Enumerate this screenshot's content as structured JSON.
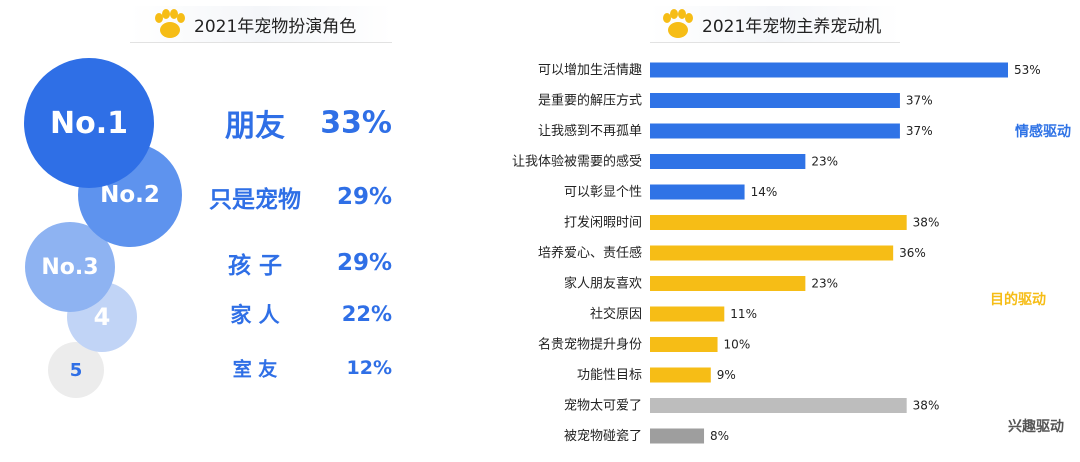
{
  "left_title": "2021年宠物扮演角色",
  "right_title": "2021年宠物主养宠动机",
  "ranks": [
    {
      "rank": "No.1",
      "label": "朋友",
      "percent": "33%"
    },
    {
      "rank": "No.2",
      "label": "只是宠物",
      "percent": "29%"
    },
    {
      "rank": "No.3",
      "label": "孩 子",
      "percent": "29%"
    },
    {
      "rank": "4",
      "label": "家 人",
      "percent": "22%"
    },
    {
      "rank": "5",
      "label": "室 友",
      "percent": "12%"
    }
  ],
  "colors": {
    "blue": "#2f73e6",
    "yellow": "#f6bd16",
    "gray": "#bdbdbd",
    "gray_dark": "#9e9e9e"
  },
  "chart_data": [
    {
      "type": "bar",
      "title": "2021年宠物扮演角色",
      "categories": [
        "朋友",
        "只是宠物",
        "孩子",
        "家人",
        "室友"
      ],
      "values": [
        33,
        29,
        29,
        22,
        12
      ]
    },
    {
      "type": "bar",
      "orientation": "horizontal",
      "title": "2021年宠物主养宠动机",
      "xlim": [
        0,
        53
      ],
      "grid": false,
      "categories": [
        "可以增加生活情趣",
        "是重要的解压方式",
        "让我感到不再孤单",
        "让我体验被需要的感受",
        "可以彰显个性",
        "打发闲暇时间",
        "培养爱心、责任感",
        "家人朋友喜欢",
        "社交原因",
        "名贵宠物提升身份",
        "功能性目标",
        "宠物太可爱了",
        "被宠物碰瓷了"
      ],
      "values": [
        53,
        37,
        37,
        23,
        14,
        38,
        36,
        23,
        11,
        10,
        9,
        38,
        8
      ],
      "value_labels": [
        "53%",
        "37%",
        "37%",
        "23%",
        "14%",
        "38%",
        "36%",
        "23%",
        "11%",
        "10%",
        "9%",
        "38%",
        "8%"
      ],
      "groups": [
        {
          "name": "情感驱动",
          "color": "#2f73e6",
          "indices": [
            0,
            1,
            2,
            3,
            4
          ]
        },
        {
          "name": "目的驱动",
          "color": "#f6bd16",
          "indices": [
            5,
            6,
            7,
            8,
            9,
            10
          ]
        },
        {
          "name": "兴趣驱动",
          "color": "#555555",
          "indices": [
            11,
            12
          ]
        }
      ],
      "bar_colors": [
        "#2f73e6",
        "#2f73e6",
        "#2f73e6",
        "#2f73e6",
        "#2f73e6",
        "#f6bd16",
        "#f6bd16",
        "#f6bd16",
        "#f6bd16",
        "#f6bd16",
        "#f6bd16",
        "#bdbdbd",
        "#9e9e9e"
      ]
    }
  ]
}
